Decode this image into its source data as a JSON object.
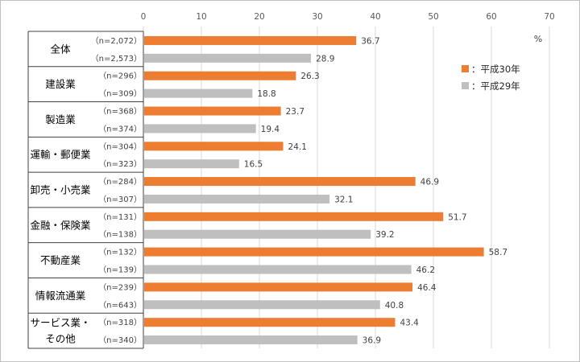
{
  "chart_data": {
    "type": "bar",
    "orientation": "horizontal",
    "unit": "%",
    "xlim": [
      0,
      70
    ],
    "x_ticks": [
      "0",
      "10",
      "20",
      "30",
      "40",
      "50",
      "60",
      "70"
    ],
    "tick_values": [
      0,
      10,
      20,
      30,
      40,
      50,
      60,
      70
    ],
    "legend_position": "top-right",
    "series": [
      {
        "name": "：平成30年",
        "color": "#ED7D31"
      },
      {
        "name": "：平成29年",
        "color": "#BFBFBF"
      }
    ],
    "categories": [
      {
        "label_lines": [
          "全体"
        ],
        "rows": [
          {
            "n": "（n=2,072）",
            "value": 36.7,
            "label": "36.7"
          },
          {
            "n": "（n=2,573）",
            "value": 28.9,
            "label": "28.9"
          }
        ]
      },
      {
        "label_lines": [
          "建設業"
        ],
        "rows": [
          {
            "n": "（n=296）",
            "value": 26.3,
            "label": "26.3"
          },
          {
            "n": "（n=309）",
            "value": 18.8,
            "label": "18.8"
          }
        ]
      },
      {
        "label_lines": [
          "製造業"
        ],
        "rows": [
          {
            "n": "（n=368）",
            "value": 23.7,
            "label": "23.7"
          },
          {
            "n": "（n=374）",
            "value": 19.4,
            "label": "19.4"
          }
        ]
      },
      {
        "label_lines": [
          "運輸・郵便業"
        ],
        "rows": [
          {
            "n": "（n=304）",
            "value": 24.1,
            "label": "24.1"
          },
          {
            "n": "（n=323）",
            "value": 16.5,
            "label": "16.5"
          }
        ]
      },
      {
        "label_lines": [
          "卸売・小売業"
        ],
        "rows": [
          {
            "n": "（n=284）",
            "value": 46.9,
            "label": "46.9"
          },
          {
            "n": "（n=307）",
            "value": 32.1,
            "label": "32.1"
          }
        ]
      },
      {
        "label_lines": [
          "金融・保険業"
        ],
        "rows": [
          {
            "n": "（n=131）",
            "value": 51.7,
            "label": "51.7"
          },
          {
            "n": "（n=138）",
            "value": 39.2,
            "label": "39.2"
          }
        ]
      },
      {
        "label_lines": [
          "不動産業"
        ],
        "rows": [
          {
            "n": "（n=132）",
            "value": 58.7,
            "label": "58.7"
          },
          {
            "n": "（n=139）",
            "value": 46.2,
            "label": "46.2"
          }
        ]
      },
      {
        "label_lines": [
          "情報流通業"
        ],
        "rows": [
          {
            "n": "（n=239）",
            "value": 46.4,
            "label": "46.4"
          },
          {
            "n": "（n=643）",
            "value": 40.8,
            "label": "40.8"
          }
        ]
      },
      {
        "label_lines": [
          "サービス業・",
          "その他"
        ],
        "rows": [
          {
            "n": "（n=318）",
            "value": 43.4,
            "label": "43.4"
          },
          {
            "n": "（n=340）",
            "value": 36.9,
            "label": "36.9"
          }
        ]
      }
    ]
  }
}
